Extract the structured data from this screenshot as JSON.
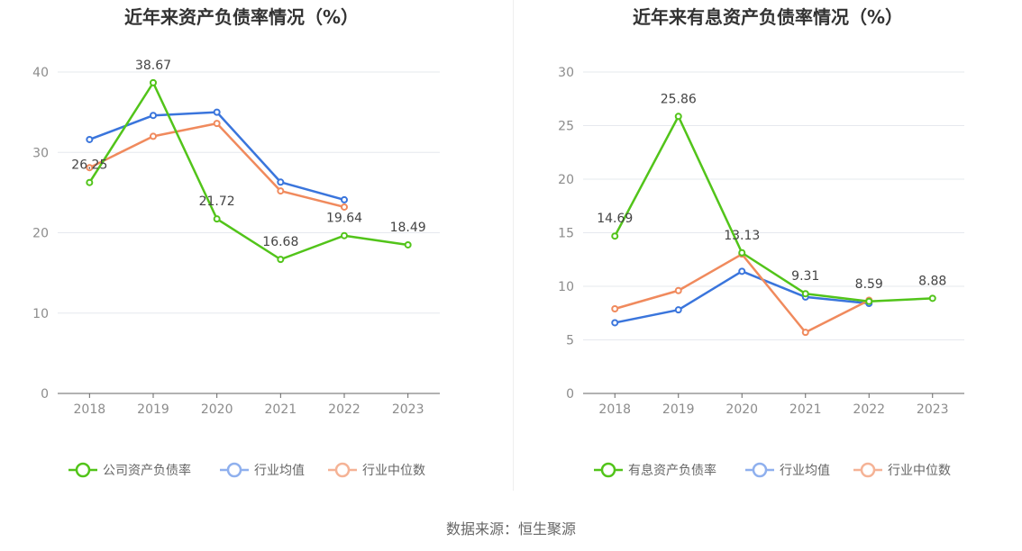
{
  "colors": {
    "company": "#52c41a",
    "industry_avg": "#3a75dc",
    "industry_median": "#f08a5d",
    "legend_avg": "#8fb0ee",
    "legend_median": "#f5b396",
    "grid": "#e6e8ee",
    "axis": "#666666"
  },
  "source_text": "数据来源：恒生聚源",
  "chart_data": [
    {
      "type": "line",
      "title": "近年来资产负债率情况（%）",
      "x": [
        "2018",
        "2019",
        "2020",
        "2021",
        "2022",
        "2023"
      ],
      "yticks": [
        "0",
        "10",
        "20",
        "30",
        "40"
      ],
      "ylim": [
        0,
        40
      ],
      "grid": true,
      "legend_position": "bottom",
      "series": [
        {
          "name": "公司资产负债率",
          "key": "company",
          "values": [
            26.25,
            38.67,
            21.72,
            16.68,
            19.64,
            18.49
          ],
          "labels": [
            "26.25",
            "38.67",
            "21.72",
            "16.68",
            "19.64",
            "18.49"
          ]
        },
        {
          "name": "行业均值",
          "key": "industry_avg",
          "values": [
            31.6,
            34.6,
            35.0,
            26.3,
            24.1,
            null
          ]
        },
        {
          "name": "行业中位数",
          "key": "industry_median",
          "values": [
            28.1,
            32.0,
            33.6,
            25.2,
            23.2,
            null
          ]
        }
      ]
    },
    {
      "type": "line",
      "title": "近年来有息资产负债率情况（%）",
      "x": [
        "2018",
        "2019",
        "2020",
        "2021",
        "2022",
        "2023"
      ],
      "yticks": [
        "0",
        "5",
        "10",
        "15",
        "20",
        "25",
        "30"
      ],
      "ylim": [
        0,
        30
      ],
      "grid": true,
      "legend_position": "bottom",
      "series": [
        {
          "name": "有息资产负债率",
          "key": "company",
          "values": [
            14.69,
            25.86,
            13.13,
            9.31,
            8.59,
            8.88
          ],
          "labels": [
            "14.69",
            "25.86",
            "13.13",
            "9.31",
            "8.59",
            "8.88"
          ]
        },
        {
          "name": "行业均值",
          "key": "industry_avg",
          "values": [
            6.6,
            7.8,
            11.4,
            9.0,
            8.4,
            null
          ]
        },
        {
          "name": "行业中位数",
          "key": "industry_median",
          "values": [
            7.9,
            9.6,
            13.0,
            5.7,
            8.7,
            null
          ]
        }
      ]
    }
  ]
}
